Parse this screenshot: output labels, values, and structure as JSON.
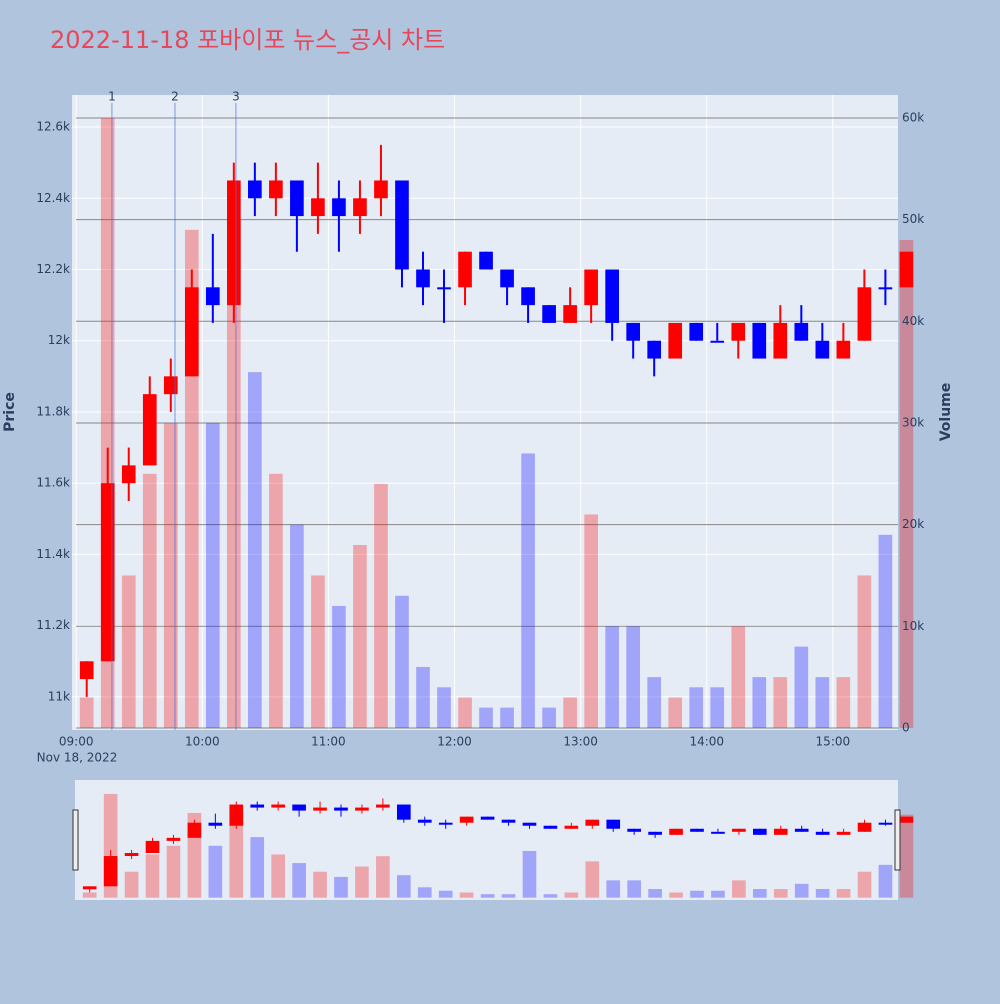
{
  "chart_data": {
    "type": "candlestick",
    "title": "2022-11-18 포바이포 뉴스_공시 차트",
    "ylabel": "Price",
    "y2label": "Volume",
    "x_date_label": "Nov 18, 2022",
    "increasing_color": "#ff0000",
    "decreasing_color": "#0000ff",
    "x": [
      "2022-11-18 09:00",
      "2022-11-18 09:10",
      "2022-11-18 09:20",
      "2022-11-18 09:30",
      "2022-11-18 09:40",
      "2022-11-18 09:50",
      "2022-11-18 10:00",
      "2022-11-18 10:10",
      "2022-11-18 10:20",
      "2022-11-18 10:30",
      "2022-11-18 10:40",
      "2022-11-18 10:50",
      "2022-11-18 11:00",
      "2022-11-18 11:10",
      "2022-11-18 11:20",
      "2022-11-18 11:30",
      "2022-11-18 11:40",
      "2022-11-18 11:50",
      "2022-11-18 12:00",
      "2022-11-18 12:10",
      "2022-11-18 12:20",
      "2022-11-18 12:30",
      "2022-11-18 12:40",
      "2022-11-18 12:50",
      "2022-11-18 13:00",
      "2022-11-18 13:10",
      "2022-11-18 13:20",
      "2022-11-18 13:30",
      "2022-11-18 13:40",
      "2022-11-18 13:50",
      "2022-11-18 14:00",
      "2022-11-18 14:10",
      "2022-11-18 14:20",
      "2022-11-18 14:30",
      "2022-11-18 14:40",
      "2022-11-18 14:50",
      "2022-11-18 15:00",
      "2022-11-18 15:10",
      "2022-11-18 15:20",
      "2022-11-18 15:30"
    ],
    "open": [
      11050,
      11100,
      11600,
      11650,
      11850,
      11900,
      12150,
      12100,
      12450,
      12400,
      12450,
      12350,
      12400,
      12350,
      12400,
      12450,
      12200,
      12150,
      12150,
      12250,
      12200,
      12150,
      12100,
      12050,
      12100,
      12200,
      12050,
      12000,
      11950,
      12050,
      12000,
      12000,
      12050,
      11950,
      12050,
      12000,
      11950,
      12000,
      12150,
      12150
    ],
    "high": [
      11100,
      11700,
      11700,
      11900,
      11950,
      12200,
      12300,
      12500,
      12500,
      12500,
      12450,
      12500,
      12450,
      12450,
      12550,
      12450,
      12250,
      12200,
      12250,
      12250,
      12200,
      12150,
      12100,
      12150,
      12200,
      12200,
      12050,
      12000,
      12050,
      12050,
      12050,
      12050,
      12050,
      12100,
      12100,
      12050,
      12050,
      12200,
      12200,
      12250
    ],
    "low": [
      11000,
      11100,
      11550,
      11650,
      11800,
      11900,
      12050,
      12050,
      12350,
      12350,
      12250,
      12300,
      12250,
      12300,
      12350,
      12150,
      12100,
      12050,
      12100,
      12200,
      12100,
      12050,
      12050,
      12050,
      12050,
      12000,
      11950,
      11900,
      11950,
      12000,
      12000,
      11950,
      11950,
      11950,
      12000,
      11950,
      11950,
      12000,
      12100,
      12150
    ],
    "close": [
      11100,
      11600,
      11650,
      11850,
      11900,
      12150,
      12100,
      12450,
      12400,
      12450,
      12350,
      12400,
      12350,
      12400,
      12450,
      12200,
      12150,
      12150,
      12250,
      12200,
      12150,
      12100,
      12050,
      12100,
      12200,
      12050,
      12000,
      11950,
      12050,
      12000,
      12000,
      12050,
      11950,
      12050,
      12000,
      11950,
      12000,
      12150,
      12150,
      12250
    ],
    "volume": [
      3000,
      60000,
      15000,
      25000,
      30000,
      49000,
      30000,
      50000,
      35000,
      25000,
      20000,
      15000,
      12000,
      18000,
      24000,
      13000,
      6000,
      4000,
      3000,
      2000,
      2000,
      27000,
      2000,
      3000,
      21000,
      10000,
      10000,
      5000,
      3000,
      4000,
      4000,
      10000,
      5000,
      5000,
      8000,
      5000,
      5000,
      15000,
      19000,
      48000
    ],
    "xlim": [
      "2022-11-18 08:58",
      "2022-11-18 15:31"
    ],
    "xticks": [
      {
        "value": "2022-11-18 09:00",
        "label": "09:00"
      },
      {
        "value": "2022-11-18 10:00",
        "label": "10:00"
      },
      {
        "value": "2022-11-18 11:00",
        "label": "11:00"
      },
      {
        "value": "2022-11-18 12:00",
        "label": "12:00"
      },
      {
        "value": "2022-11-18 13:00",
        "label": "13:00"
      },
      {
        "value": "2022-11-18 14:00",
        "label": "14:00"
      },
      {
        "value": "2022-11-18 15:00",
        "label": "15:00"
      }
    ],
    "ylim": [
      10907,
      12690
    ],
    "yticks": [
      {
        "value": 11000,
        "label": "11k"
      },
      {
        "value": 11200,
        "label": "11.2k"
      },
      {
        "value": 11400,
        "label": "11.4k"
      },
      {
        "value": 11600,
        "label": "11.6k"
      },
      {
        "value": 11800,
        "label": "11.8k"
      },
      {
        "value": 12000,
        "label": "12k"
      },
      {
        "value": 12200,
        "label": "12.2k"
      },
      {
        "value": 12400,
        "label": "12.4k"
      },
      {
        "value": 12600,
        "label": "12.6k"
      }
    ],
    "y2lim": [
      -200,
      62260
    ],
    "y2ticks": [
      0,
      {
        "value": 10000,
        "label": "10k"
      },
      {
        "value": 20000,
        "label": "20k"
      },
      {
        "value": 30000,
        "label": "30k"
      },
      {
        "value": 40000,
        "label": "40k"
      },
      {
        "value": 50000,
        "label": "50k"
      },
      {
        "value": 60000,
        "label": "60k"
      }
    ],
    "annotations": [
      {
        "x": "2022-11-18 09:17",
        "text": "1"
      },
      {
        "x": "2022-11-18 09:47",
        "text": "2"
      },
      {
        "x": "2022-11-18 10:16",
        "text": "3"
      }
    ]
  }
}
